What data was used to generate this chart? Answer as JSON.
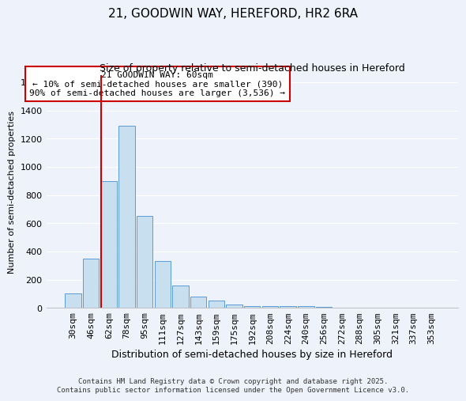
{
  "title": "21, GOODWIN WAY, HEREFORD, HR2 6RA",
  "subtitle": "Size of property relative to semi-detached houses in Hereford",
  "xlabel": "Distribution of semi-detached houses by size in Hereford",
  "ylabel": "Number of semi-detached properties",
  "bar_labels": [
    "30sqm",
    "46sqm",
    "62sqm",
    "78sqm",
    "95sqm",
    "111sqm",
    "127sqm",
    "143sqm",
    "159sqm",
    "175sqm",
    "192sqm",
    "208sqm",
    "224sqm",
    "240sqm",
    "256sqm",
    "272sqm",
    "288sqm",
    "305sqm",
    "321sqm",
    "337sqm",
    "353sqm"
  ],
  "bar_values": [
    100,
    350,
    900,
    1290,
    650,
    330,
    160,
    80,
    50,
    25,
    15,
    10,
    15,
    10,
    5,
    3,
    3,
    2,
    2,
    2,
    2
  ],
  "bar_color": "#c8dff0",
  "bar_edge_color": "#5b9bd5",
  "vline_color": "#cc0000",
  "annotation_text": "21 GOODWIN WAY: 60sqm\n← 10% of semi-detached houses are smaller (390)\n90% of semi-detached houses are larger (3,536) →",
  "annotation_box_facecolor": "#ffffff",
  "annotation_box_edgecolor": "#cc0000",
  "ylim": [
    0,
    1650
  ],
  "yticks": [
    0,
    200,
    400,
    600,
    800,
    1000,
    1200,
    1400,
    1600
  ],
  "background_color": "#eef2fa",
  "grid_color": "#ffffff",
  "footer_text": "Contains HM Land Registry data © Crown copyright and database right 2025.\nContains public sector information licensed under the Open Government Licence v3.0.",
  "title_fontsize": 11,
  "subtitle_fontsize": 9,
  "xlabel_fontsize": 9,
  "ylabel_fontsize": 8,
  "tick_fontsize": 8,
  "annotation_fontsize": 8,
  "footer_fontsize": 6.5
}
